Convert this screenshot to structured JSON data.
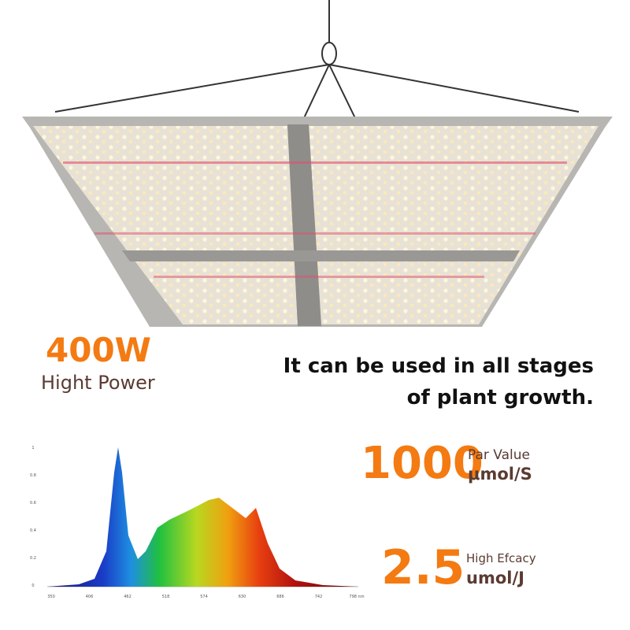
{
  "power": {
    "value": "400W",
    "label": "Hight Power"
  },
  "tagline": [
    "It can be used in all stages",
    "of plant growth."
  ],
  "par": {
    "value": "1000",
    "label": "Par Value",
    "unit": "μmol/S"
  },
  "efficacy": {
    "value": "2.5",
    "label": "High Efcacy",
    "unit": "umol/J"
  },
  "spectrum": {
    "yticks": [
      "1",
      "0.8",
      "0.6",
      "0.4",
      "0.2",
      "0"
    ],
    "xticks": [
      "350",
      "406",
      "462",
      "518",
      "574",
      "630",
      "686",
      "742",
      "798 nm"
    ]
  }
}
